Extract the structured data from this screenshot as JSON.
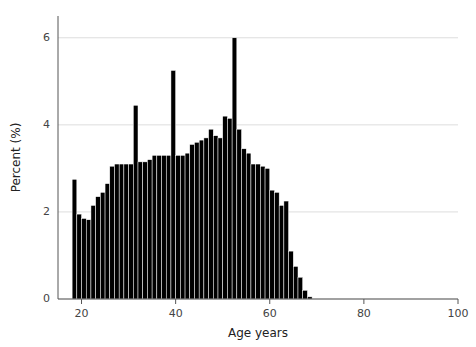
{
  "chart_data": {
    "type": "bar",
    "xlabel": "Age years",
    "ylabel": "Percent (%)",
    "x": [
      18,
      19,
      20,
      21,
      22,
      23,
      24,
      25,
      26,
      27,
      28,
      29,
      30,
      31,
      32,
      33,
      34,
      35,
      36,
      37,
      38,
      39,
      40,
      41,
      42,
      43,
      44,
      45,
      46,
      47,
      48,
      49,
      50,
      51,
      52,
      53,
      54,
      55,
      56,
      57,
      58,
      59,
      60,
      61,
      62,
      63,
      64,
      65,
      66,
      67,
      68,
      69,
      70,
      71,
      72,
      73,
      74,
      75,
      76,
      77,
      78,
      79,
      80,
      81,
      82,
      83,
      84,
      85,
      86,
      87,
      88,
      89,
      90,
      91,
      92,
      93
    ],
    "values": [
      2.75,
      1.95,
      1.85,
      1.82,
      2.15,
      2.35,
      2.45,
      2.65,
      3.05,
      3.1,
      3.1,
      3.1,
      3.1,
      4.45,
      3.15,
      3.15,
      3.2,
      3.3,
      3.3,
      3.3,
      3.3,
      5.25,
      3.3,
      3.3,
      3.35,
      3.55,
      3.6,
      3.65,
      3.7,
      3.9,
      3.75,
      3.7,
      4.2,
      4.15,
      6.0,
      3.9,
      3.45,
      3.35,
      3.1,
      3.1,
      3.05,
      3.0,
      2.5,
      2.45,
      2.15,
      2.25,
      1.1,
      0.75,
      0.5,
      0.2,
      0.05,
      0.0,
      0.0,
      0.0,
      0.0,
      0.0,
      0.0,
      0.0,
      0.0,
      0.0,
      0.0,
      0.0,
      0.0,
      0.0,
      0.0,
      0.0,
      0.0,
      0.0,
      0.0,
      0.0,
      0.0,
      0.0,
      0.0,
      0.0,
      0.0,
      0.0
    ],
    "color": "#000000",
    "xlim": [
      15,
      100
    ],
    "ylim": [
      0,
      6.5
    ],
    "xticks": [
      20,
      40,
      60,
      80,
      100
    ],
    "yticks": [
      0,
      2,
      4,
      6
    ],
    "grid": true
  }
}
